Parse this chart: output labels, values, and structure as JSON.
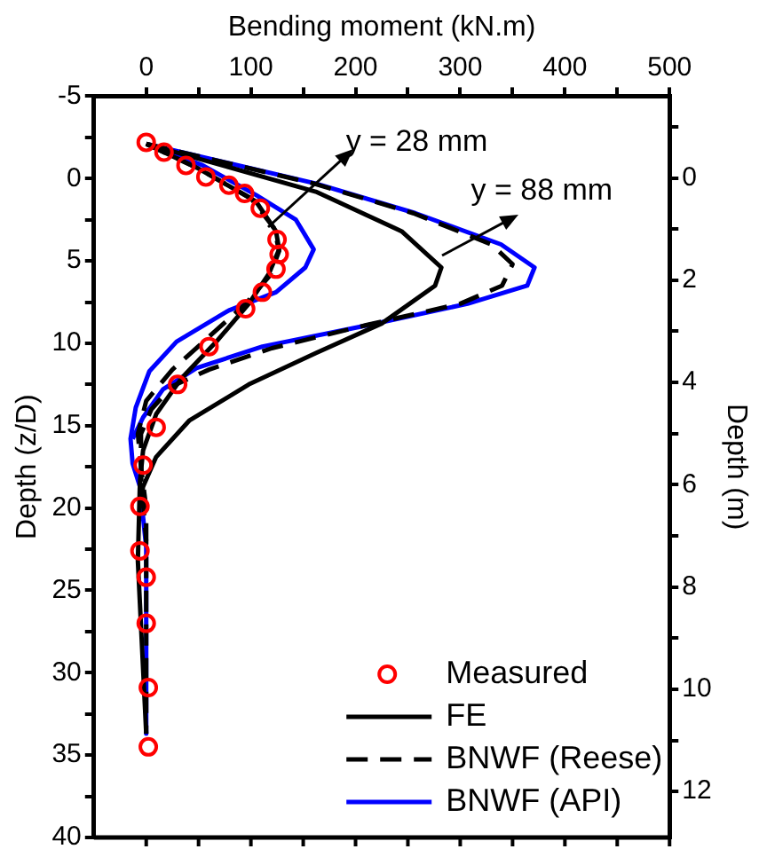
{
  "chart_data": {
    "type": "line",
    "xlabel": "Bending moment (kN.m)",
    "ylabel": "Depth (z/D)",
    "y2label": "Depth (m)",
    "xlim": [
      -50,
      500
    ],
    "xticks": [
      0,
      {
        "value": 50,
        "label": null
      },
      100,
      {
        "value": 150,
        "label": null
      },
      200,
      {
        "value": 250,
        "label": null
      },
      300,
      {
        "value": 350,
        "label": null
      },
      400,
      {
        "value": 450,
        "label": null
      },
      500
    ],
    "ylim": [
      40,
      -5
    ],
    "yticks": [
      -5,
      {
        "value": -2.5,
        "label": null
      },
      0,
      {
        "value": 2.5,
        "label": null
      },
      5,
      {
        "value": 7.5,
        "label": null
      },
      10,
      {
        "value": 12.5,
        "label": null
      },
      15,
      {
        "value": 17.5,
        "label": null
      },
      20,
      {
        "value": 22.5,
        "label": null
      },
      25,
      {
        "value": 27.5,
        "label": null
      },
      30,
      {
        "value": 32.5,
        "label": null
      },
      35,
      {
        "value": 37.5,
        "label": null
      },
      40
    ],
    "y2lim": [
      12.9,
      -1.6
    ],
    "y2ticks": [
      {
        "value": -1,
        "label": null
      },
      0,
      {
        "value": 1,
        "label": null
      },
      2,
      {
        "value": 3,
        "label": null
      },
      4,
      {
        "value": 5,
        "label": null
      },
      6,
      {
        "value": 7,
        "label": null
      },
      8,
      {
        "value": 9,
        "label": null
      },
      10,
      {
        "value": 11,
        "label": null
      },
      12
    ],
    "legend": "bottom right",
    "grid": false,
    "series": [
      {
        "name": "Measured",
        "type": "scatter",
        "marker": "circle",
        "color": "#ff0000",
        "x": [
          0,
          17,
          38,
          57,
          79,
          94,
          109,
          125,
          127,
          124,
          111,
          95,
          60,
          30,
          9.5,
          -3,
          -6,
          -6,
          0,
          0,
          2,
          2
        ],
        "values": [
          -2.2,
          -1.6,
          -0.8,
          -0.1,
          0.4,
          0.9,
          1.8,
          3.7,
          4.6,
          5.5,
          6.9,
          7.9,
          10.2,
          12.5,
          15.1,
          17.4,
          19.9,
          22.6,
          24.2,
          27,
          30.9,
          34.5
        ]
      },
      {
        "name": "FE",
        "type": "line",
        "marker": "none",
        "color": "#000000",
        "line_style": "solid",
        "x": [
          0,
          50,
          105,
          124,
          127,
          117,
          98,
          67,
          34,
          9.5,
          -3,
          -6,
          -8,
          0
        ],
        "values": [
          -2.1,
          -0.6,
          1.4,
          3.2,
          4.3,
          5.8,
          7.6,
          9.9,
          12.1,
          14.3,
          16.5,
          18.4,
          23.2,
          33.7
        ]
      },
      {
        "type": "line",
        "marker": "none",
        "color": "#000000",
        "line_style": "solid",
        "x": [
          0,
          162,
          244,
          282,
          276,
          225,
          162,
          98,
          41,
          9.5,
          -3,
          -6
        ],
        "values": [
          -2.1,
          0.8,
          3.2,
          5.4,
          6.5,
          8.8,
          10.6,
          12.5,
          14.7,
          16.9,
          18.7,
          20
        ]
      },
      {
        "name": "BNWF (Reese)",
        "type": "line",
        "marker": "none",
        "color": "#000000",
        "line_style": "dashed",
        "x": [
          0,
          50,
          100,
          122,
          127,
          118,
          95,
          60,
          25,
          0,
          -8,
          -5,
          0,
          0
        ],
        "values": [
          -2.1,
          -0.6,
          1.2,
          3,
          4.4,
          5.9,
          7.6,
          9.6,
          11.6,
          13.5,
          15.5,
          17.5,
          20,
          33.7
        ]
      },
      {
        "type": "line",
        "marker": "none",
        "color": "#000000",
        "line_style": "dashed",
        "x": [
          0,
          160,
          255,
          330,
          350,
          340,
          300,
          210,
          120,
          60,
          25,
          5,
          -5,
          -5,
          0
        ],
        "values": [
          -2.1,
          0.3,
          2.1,
          4,
          5.2,
          6.5,
          7.6,
          8.9,
          10.3,
          11.6,
          12.6,
          14,
          15.5,
          18,
          22
        ]
      },
      {
        "name": "BNWF (API)",
        "type": "line",
        "marker": "none",
        "color": "#0000ff",
        "line_style": "solid",
        "x": [
          0,
          54,
          105,
          143,
          160,
          152,
          124,
          79,
          29,
          3,
          -10,
          -15,
          -13,
          -6,
          0,
          0
        ],
        "values": [
          -2.1,
          -0.8,
          1,
          2.5,
          4.3,
          5.4,
          6.9,
          8,
          9.9,
          11.7,
          13.9,
          15.8,
          17.3,
          18.7,
          22.4,
          33.7
        ]
      },
      {
        "type": "line",
        "marker": "none",
        "color": "#0000ff",
        "line_style": "solid",
        "x": [
          0,
          162,
          257,
          339,
          371,
          364,
          307,
          212,
          111,
          48,
          16,
          -3,
          -13
        ],
        "values": [
          -2.1,
          0.3,
          2.1,
          4,
          5.4,
          6.5,
          7.6,
          8.9,
          10.2,
          11.5,
          12.8,
          14.5,
          15.8
        ]
      }
    ],
    "annotations": [
      {
        "text": "y = 28 mm",
        "x": 116,
        "y": 3
      },
      {
        "text": "y = 88 mm",
        "x": 283,
        "y": 4.66
      }
    ]
  }
}
